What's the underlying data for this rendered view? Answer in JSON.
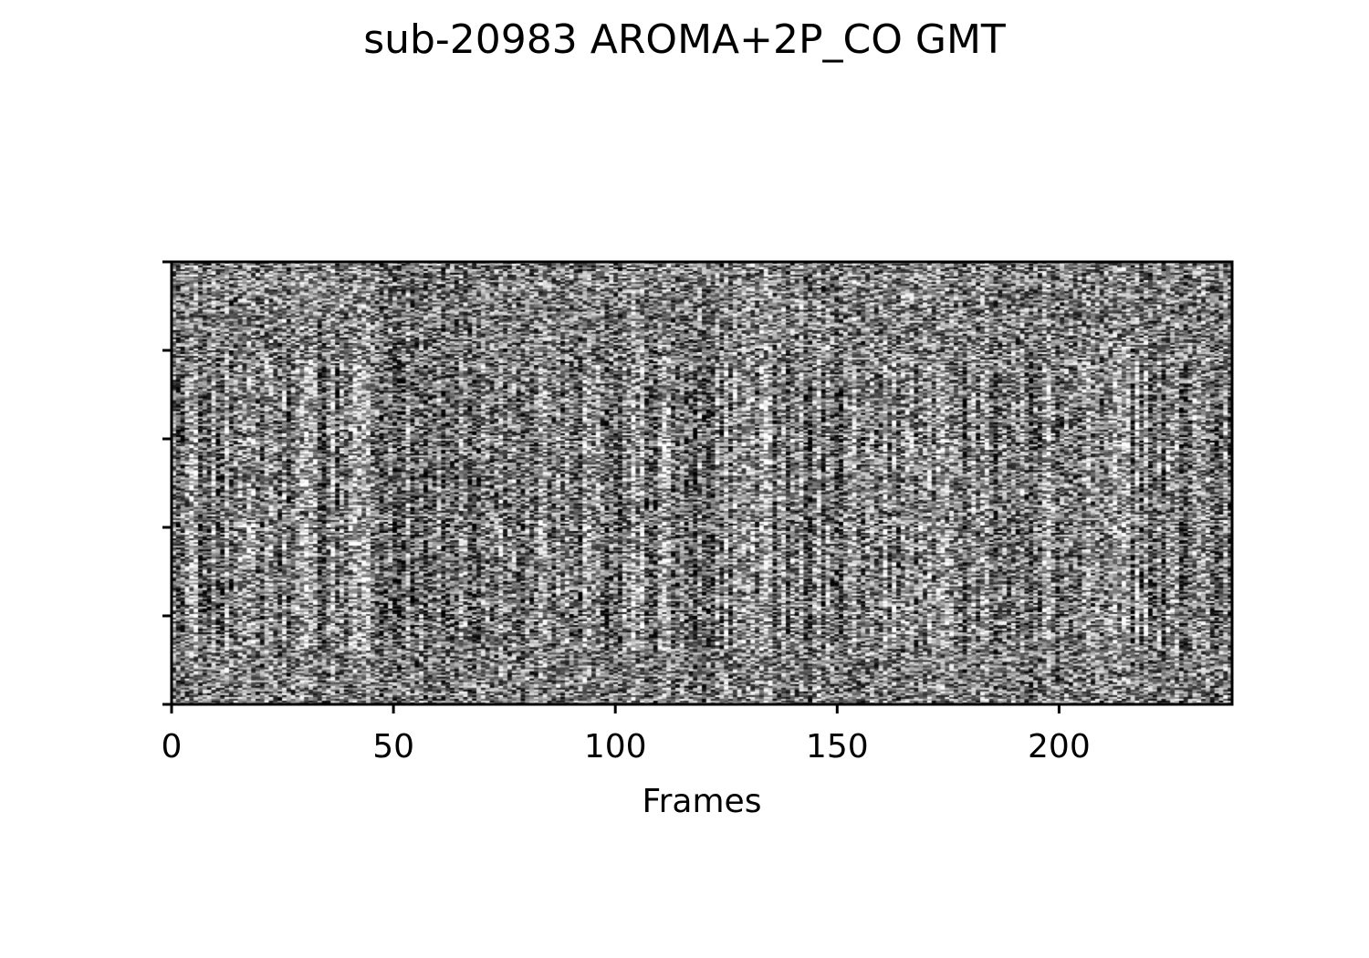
{
  "chart_data": {
    "type": "heatmap",
    "title": "sub-20983 AROMA+2P_CO GMT",
    "xlabel": "Frames",
    "ylabel": "",
    "xlim": [
      0,
      239
    ],
    "x_ticks": [
      "0",
      "50",
      "100",
      "150",
      "200"
    ],
    "y_ticks": [
      "",
      "",
      "",
      "",
      "",
      ""
    ],
    "colormap": "gray",
    "grid": false,
    "legend": "none",
    "description_note": "",
    "series": []
  }
}
